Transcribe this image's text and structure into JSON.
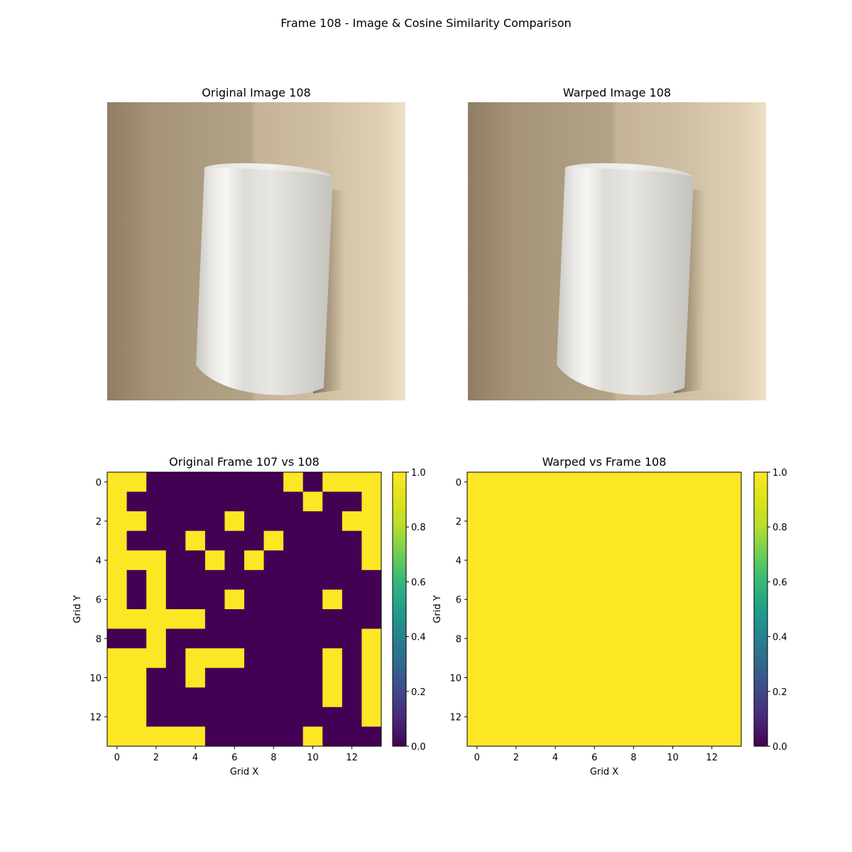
{
  "figure": {
    "title": "Frame 108 - Image & Cosine Similarity Comparison"
  },
  "panels": {
    "original_image": {
      "title": "Original Image 108"
    },
    "warped_image": {
      "title": "Warped Image 108"
    }
  },
  "colors": {
    "viridis_low": "#440154",
    "viridis_high": "#fde725",
    "wall_left": "#a39275",
    "wall_right": "#ebdcc2",
    "cylinder": "#dcdad4"
  },
  "chart_data": [
    {
      "type": "heatmap",
      "title": "Original Frame 107 vs 108",
      "xlabel": "Grid X",
      "ylabel": "Grid Y",
      "xticks": [
        0,
        2,
        4,
        6,
        8,
        10,
        12
      ],
      "yticks": [
        0,
        2,
        4,
        6,
        8,
        10,
        12
      ],
      "colorbar": {
        "min": 0.0,
        "max": 1.0,
        "ticks": [
          "0.0",
          "0.2",
          "0.4",
          "0.6",
          "0.8",
          "1.0"
        ]
      },
      "matrix": [
        [
          1,
          1,
          0,
          0,
          0,
          0,
          0,
          0,
          0,
          1,
          0,
          1,
          1,
          1
        ],
        [
          1,
          0,
          0,
          0,
          0,
          0,
          0,
          0,
          0,
          0,
          1,
          0,
          0,
          1
        ],
        [
          1,
          1,
          0,
          0,
          0,
          0,
          1,
          0,
          0,
          0,
          0,
          0,
          1,
          1
        ],
        [
          1,
          0,
          0,
          0,
          1,
          0,
          0,
          0,
          1,
          0,
          0,
          0,
          0,
          1
        ],
        [
          1,
          1,
          1,
          0,
          0,
          1,
          0,
          1,
          0,
          0,
          0,
          0,
          0,
          1
        ],
        [
          1,
          0,
          1,
          0,
          0,
          0,
          0,
          0,
          0,
          0,
          0,
          0,
          0,
          0
        ],
        [
          1,
          0,
          1,
          0,
          0,
          0,
          1,
          0,
          0,
          0,
          0,
          1,
          0,
          0
        ],
        [
          1,
          1,
          1,
          1,
          1,
          0,
          0,
          0,
          0,
          0,
          0,
          0,
          0,
          0
        ],
        [
          0,
          0,
          1,
          0,
          0,
          0,
          0,
          0,
          0,
          0,
          0,
          0,
          0,
          1
        ],
        [
          1,
          1,
          1,
          0,
          1,
          1,
          1,
          0,
          0,
          0,
          0,
          1,
          0,
          1
        ],
        [
          1,
          1,
          0,
          0,
          1,
          0,
          0,
          0,
          0,
          0,
          0,
          1,
          0,
          1
        ],
        [
          1,
          1,
          0,
          0,
          0,
          0,
          0,
          0,
          0,
          0,
          0,
          1,
          0,
          1
        ],
        [
          1,
          1,
          0,
          0,
          0,
          0,
          0,
          0,
          0,
          0,
          0,
          0,
          0,
          1
        ],
        [
          1,
          1,
          1,
          1,
          1,
          0,
          0,
          0,
          0,
          0,
          1,
          0,
          0,
          0
        ]
      ]
    },
    {
      "type": "heatmap",
      "title": "Warped vs Frame 108",
      "xlabel": "Grid X",
      "ylabel": "Grid Y",
      "xticks": [
        0,
        2,
        4,
        6,
        8,
        10,
        12
      ],
      "yticks": [
        0,
        2,
        4,
        6,
        8,
        10,
        12
      ],
      "colorbar": {
        "min": 0.0,
        "max": 1.0,
        "ticks": [
          "0.0",
          "0.2",
          "0.4",
          "0.6",
          "0.8",
          "1.0"
        ]
      },
      "matrix": [
        [
          1,
          1,
          1,
          1,
          1,
          1,
          1,
          1,
          1,
          1,
          1,
          1,
          1,
          1
        ],
        [
          1,
          1,
          1,
          1,
          1,
          1,
          1,
          1,
          1,
          1,
          1,
          1,
          1,
          1
        ],
        [
          1,
          1,
          1,
          1,
          1,
          1,
          1,
          1,
          1,
          1,
          1,
          1,
          1,
          1
        ],
        [
          1,
          1,
          1,
          1,
          1,
          1,
          1,
          1,
          1,
          1,
          1,
          1,
          1,
          1
        ],
        [
          1,
          1,
          1,
          1,
          1,
          1,
          1,
          1,
          1,
          1,
          1,
          1,
          1,
          1
        ],
        [
          1,
          1,
          1,
          1,
          1,
          1,
          1,
          1,
          1,
          1,
          1,
          1,
          1,
          1
        ],
        [
          1,
          1,
          1,
          1,
          1,
          1,
          1,
          1,
          1,
          1,
          1,
          1,
          1,
          1
        ],
        [
          1,
          1,
          1,
          1,
          1,
          1,
          1,
          1,
          1,
          1,
          1,
          1,
          1,
          1
        ],
        [
          1,
          1,
          1,
          1,
          1,
          1,
          1,
          1,
          1,
          1,
          1,
          1,
          1,
          1
        ],
        [
          1,
          1,
          1,
          1,
          1,
          1,
          1,
          1,
          1,
          1,
          1,
          1,
          1,
          1
        ],
        [
          1,
          1,
          1,
          1,
          1,
          1,
          1,
          1,
          1,
          1,
          1,
          1,
          1,
          1
        ],
        [
          1,
          1,
          1,
          1,
          1,
          1,
          1,
          1,
          1,
          1,
          1,
          1,
          1,
          1
        ],
        [
          1,
          1,
          1,
          1,
          1,
          1,
          1,
          1,
          1,
          1,
          1,
          1,
          1,
          1
        ],
        [
          1,
          1,
          1,
          1,
          1,
          1,
          1,
          1,
          1,
          1,
          1,
          1,
          1,
          1
        ]
      ]
    }
  ]
}
